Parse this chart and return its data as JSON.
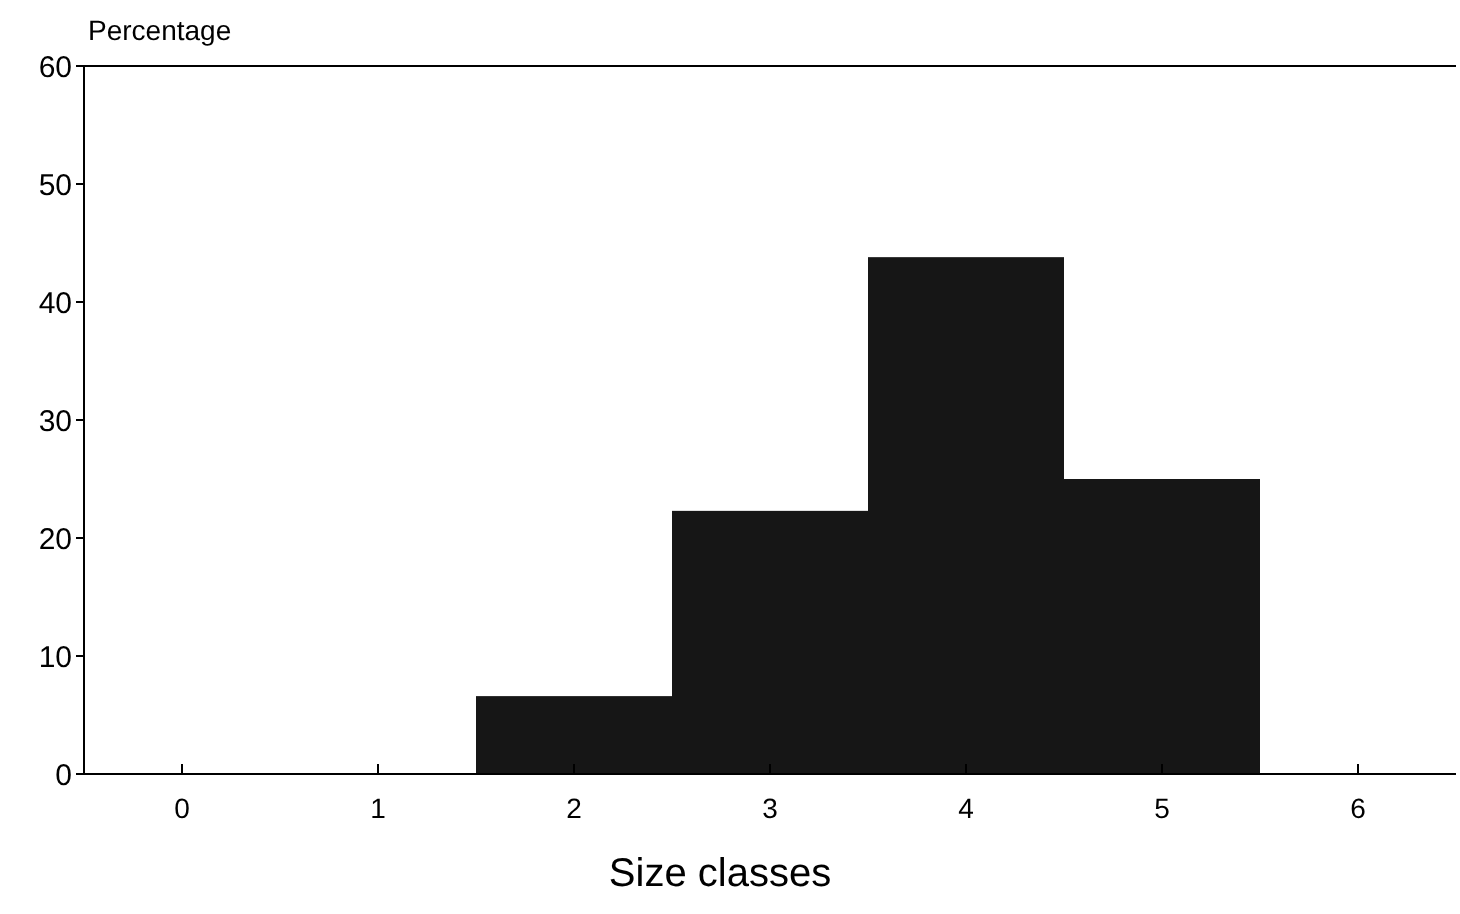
{
  "chart_data": {
    "type": "histogram",
    "ylabel": "Percentage",
    "xlabel": "Size classes",
    "bins": [
      -0.5,
      0.5,
      1.5,
      2.5,
      3.5,
      4.5,
      5.5,
      6.5
    ],
    "values": [
      0,
      0,
      6.6,
      22.3,
      43.8,
      25,
      0
    ],
    "color": "#161616",
    "xlim": [
      -0.5,
      6.5
    ],
    "xticks": [
      0,
      1,
      2,
      3,
      4,
      5,
      6
    ],
    "ylim": [
      0,
      60
    ],
    "yticks": [
      0,
      10,
      20,
      30,
      40,
      50,
      60
    ],
    "grid": false
  }
}
